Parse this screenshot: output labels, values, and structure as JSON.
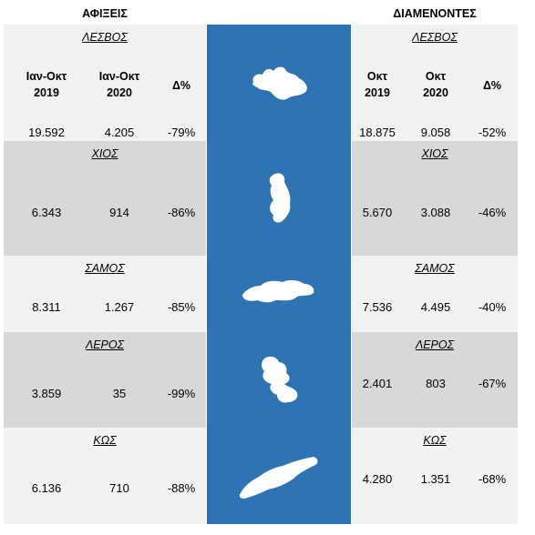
{
  "headers": {
    "arrivals": "ΑΦΙΞΕΙΣ",
    "overnight": "ΔΙΑΜΕΝΟΝΤΕΣ"
  },
  "arrivals_columns": [
    "Ιαν-Οκτ 2019",
    "Ιαν-Οκτ 2020",
    "Δ%"
  ],
  "arrivals_col_lines": [
    [
      "Ιαν-Οκτ",
      "2019"
    ],
    [
      "Ιαν-Οκτ",
      "2020"
    ],
    [
      "Δ%"
    ]
  ],
  "overnight_col_lines": [
    [
      "Οκτ",
      "2019"
    ],
    [
      "Οκτ",
      "2020"
    ],
    [
      "Δ%"
    ]
  ],
  "colors": {
    "map_background": "#2e74b5",
    "island_fill": "#ffffff",
    "light_row": "#f2f2f2",
    "dark_row": "#d8d8d8"
  },
  "islands": [
    {
      "name": "ΛΕΣΒΟΣ",
      "icon": "lesvos-island-icon",
      "arrivals": [
        "19.592",
        "4.205",
        "-79%"
      ],
      "overnight": [
        "18.875",
        "9.058",
        "-52%"
      ]
    },
    {
      "name": "ΧΙΟΣ",
      "icon": "chios-island-icon",
      "arrivals": [
        "6.343",
        "914",
        "-86%"
      ],
      "overnight": [
        "5.670",
        "3.088",
        "-46%"
      ]
    },
    {
      "name": "ΣΑΜΟΣ",
      "icon": "samos-island-icon",
      "arrivals": [
        "8.311",
        "1.267",
        "-85%"
      ],
      "overnight": [
        "7.536",
        "4.495",
        "-40%"
      ]
    },
    {
      "name": "ΛΕΡΟΣ",
      "icon": "leros-island-icon",
      "arrivals": [
        "3.859",
        "35",
        "-99%"
      ],
      "overnight": [
        "2.401",
        "803",
        "-67%"
      ]
    },
    {
      "name": "ΚΩΣ",
      "icon": "kos-island-icon",
      "arrivals": [
        "6.136",
        "710",
        "-88%"
      ],
      "overnight": [
        "4.280",
        "1.351",
        "-68%"
      ]
    }
  ]
}
